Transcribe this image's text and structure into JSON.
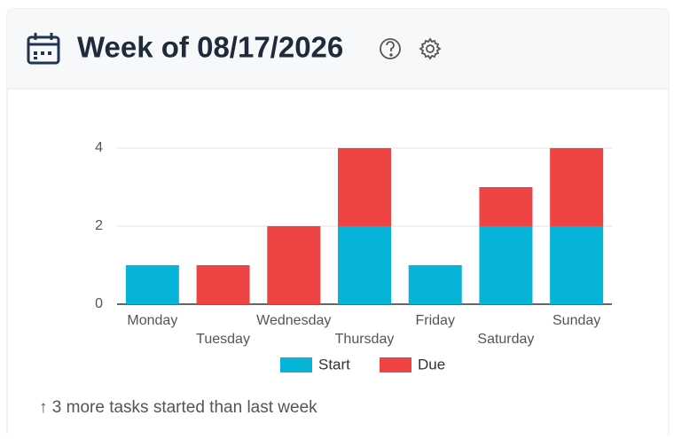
{
  "header": {
    "title": "Week of 08/17/2026"
  },
  "chart_data": {
    "type": "stacked-bar",
    "categories": [
      "Monday",
      "Tuesday",
      "Wednesday",
      "Thursday",
      "Friday",
      "Saturday",
      "Sunday"
    ],
    "series": [
      {
        "name": "Start",
        "color": "#06b4d8",
        "values": [
          1,
          0,
          0,
          2,
          1,
          2,
          2
        ]
      },
      {
        "name": "Due",
        "color": "#ef4444",
        "values": [
          0,
          1,
          2,
          2,
          0,
          1,
          2
        ]
      }
    ],
    "ylim": [
      0,
      4
    ],
    "yticks": [
      0,
      2,
      4
    ],
    "grid": true,
    "legend": "bottom"
  },
  "footer": {
    "text": "↑ 3 more tasks started than last week"
  }
}
